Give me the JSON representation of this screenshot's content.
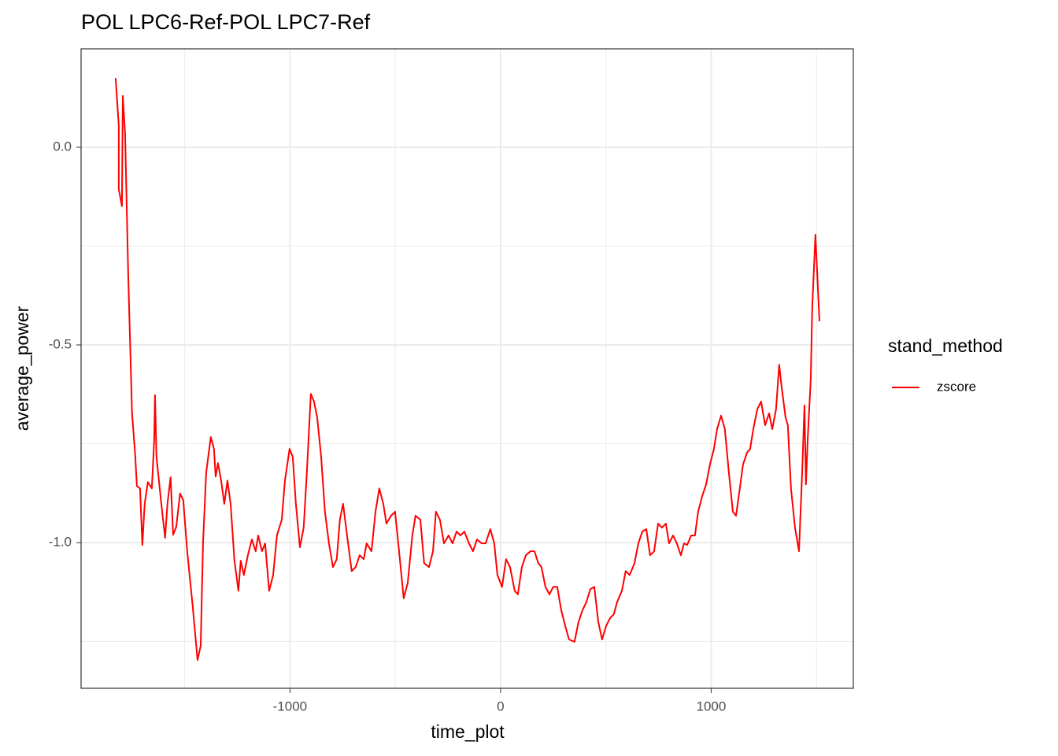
{
  "chart_data": {
    "type": "line",
    "title": "POL LPC6-Ref-POL LPC7-Ref",
    "x_label": "time_plot",
    "y_label": "average_power",
    "legend_title": "stand_method",
    "legend_position": "right",
    "grid": true,
    "xlim": [
      -1992,
      1675
    ],
    "ylim": [
      -1.3685,
      0.249
    ],
    "xticks": [
      -1000,
      0,
      1000
    ],
    "yticks": [
      {
        "value": -1.0,
        "label": "-1.0"
      },
      {
        "value": -0.5,
        "label": "-0.5"
      },
      {
        "value": 0.0,
        "label": "0.0"
      }
    ],
    "x_minor_grid": [
      -1500,
      -500,
      500,
      1500
    ],
    "y_minor_grid": [
      -1.25,
      -0.75,
      -0.25
    ],
    "x": [
      -1828,
      -1813,
      -1813,
      -1798,
      -1794,
      -1783,
      -1768,
      -1750,
      -1735,
      -1727,
      -1712,
      -1701,
      -1690,
      -1675,
      -1656,
      -1645,
      -1641,
      -1634,
      -1611,
      -1593,
      -1582,
      -1567,
      -1555,
      -1540,
      -1522,
      -1507,
      -1488,
      -1462,
      -1439,
      -1424,
      -1413,
      -1398,
      -1376,
      -1361,
      -1353,
      -1342,
      -1327,
      -1312,
      -1297,
      -1282,
      -1264,
      -1245,
      -1234,
      -1219,
      -1200,
      -1181,
      -1163,
      -1151,
      -1133,
      -1118,
      -1099,
      -1080,
      -1062,
      -1039,
      -1024,
      -1002,
      -987,
      -972,
      -953,
      -935,
      -920,
      -901,
      -886,
      -871,
      -852,
      -834,
      -815,
      -796,
      -778,
      -763,
      -748,
      -729,
      -707,
      -688,
      -669,
      -650,
      -636,
      -613,
      -594,
      -576,
      -557,
      -542,
      -520,
      -501,
      -482,
      -460,
      -441,
      -419,
      -404,
      -381,
      -363,
      -340,
      -321,
      -307,
      -288,
      -269,
      -247,
      -228,
      -209,
      -191,
      -172,
      -150,
      -131,
      -112,
      -90,
      -71,
      -49,
      -30,
      -15,
      7,
      26,
      45,
      67,
      82,
      101,
      120,
      142,
      161,
      179,
      194,
      213,
      232,
      250,
      269,
      288,
      307,
      325,
      351,
      370,
      389,
      407,
      426,
      445,
      464,
      482,
      501,
      520,
      538,
      553,
      576,
      594,
      613,
      636,
      654,
      673,
      692,
      710,
      729,
      748,
      766,
      785,
      800,
      819,
      837,
      856,
      871,
      886,
      905,
      923,
      938,
      957,
      976,
      994,
      1013,
      1028,
      1047,
      1065,
      1084,
      1103,
      1118,
      1136,
      1151,
      1170,
      1185,
      1200,
      1219,
      1237,
      1256,
      1275,
      1290,
      1308,
      1323,
      1334,
      1353,
      1364,
      1379,
      1398,
      1417,
      1432,
      1443,
      1450,
      1458,
      1473,
      1480,
      1495,
      1514
    ],
    "series": [
      {
        "name": "zscore",
        "color": "#ff0000",
        "values": [
          0.175,
          0.054,
          -0.106,
          -0.149,
          0.13,
          0.034,
          -0.325,
          -0.673,
          -0.779,
          -0.857,
          -0.863,
          -1.006,
          -0.902,
          -0.847,
          -0.863,
          -0.743,
          -0.627,
          -0.783,
          -0.902,
          -0.988,
          -0.902,
          -0.835,
          -0.98,
          -0.96,
          -0.876,
          -0.892,
          -1.022,
          -1.161,
          -1.297,
          -1.261,
          -1.002,
          -0.823,
          -0.733,
          -0.763,
          -0.833,
          -0.799,
          -0.843,
          -0.902,
          -0.843,
          -0.902,
          -1.044,
          -1.122,
          -1.046,
          -1.082,
          -1.032,
          -0.992,
          -1.022,
          -0.982,
          -1.022,
          -1.002,
          -1.122,
          -1.082,
          -0.982,
          -0.942,
          -0.843,
          -0.763,
          -0.783,
          -0.902,
          -1.012,
          -0.962,
          -0.823,
          -0.624,
          -0.643,
          -0.683,
          -0.783,
          -0.922,
          -1.002,
          -1.062,
          -1.042,
          -0.942,
          -0.902,
          -0.982,
          -1.072,
          -1.062,
          -1.032,
          -1.042,
          -1.002,
          -1.022,
          -0.922,
          -0.863,
          -0.902,
          -0.952,
          -0.932,
          -0.922,
          -1.022,
          -1.141,
          -1.102,
          -0.982,
          -0.932,
          -0.942,
          -1.052,
          -1.062,
          -1.022,
          -0.922,
          -0.942,
          -1.002,
          -0.982,
          -1.002,
          -0.972,
          -0.982,
          -0.972,
          -1.002,
          -1.022,
          -0.992,
          -1.002,
          -1.002,
          -0.966,
          -1.002,
          -1.082,
          -1.112,
          -1.042,
          -1.062,
          -1.122,
          -1.131,
          -1.062,
          -1.032,
          -1.022,
          -1.022,
          -1.052,
          -1.062,
          -1.112,
          -1.131,
          -1.112,
          -1.112,
          -1.171,
          -1.211,
          -1.245,
          -1.251,
          -1.201,
          -1.171,
          -1.151,
          -1.118,
          -1.112,
          -1.201,
          -1.245,
          -1.211,
          -1.191,
          -1.181,
          -1.151,
          -1.122,
          -1.072,
          -1.082,
          -1.052,
          -1.002,
          -0.972,
          -0.966,
          -1.032,
          -1.022,
          -0.952,
          -0.962,
          -0.952,
          -1.002,
          -0.982,
          -1.002,
          -1.032,
          -1.002,
          -1.006,
          -0.982,
          -0.982,
          -0.922,
          -0.883,
          -0.853,
          -0.803,
          -0.763,
          -0.713,
          -0.679,
          -0.713,
          -0.823,
          -0.922,
          -0.932,
          -0.863,
          -0.803,
          -0.773,
          -0.763,
          -0.713,
          -0.663,
          -0.643,
          -0.703,
          -0.673,
          -0.713,
          -0.663,
          -0.55,
          -0.604,
          -0.683,
          -0.703,
          -0.863,
          -0.962,
          -1.022,
          -0.823,
          -0.653,
          -0.853,
          -0.743,
          -0.584,
          -0.404,
          -0.221,
          -0.44
        ]
      }
    ]
  }
}
